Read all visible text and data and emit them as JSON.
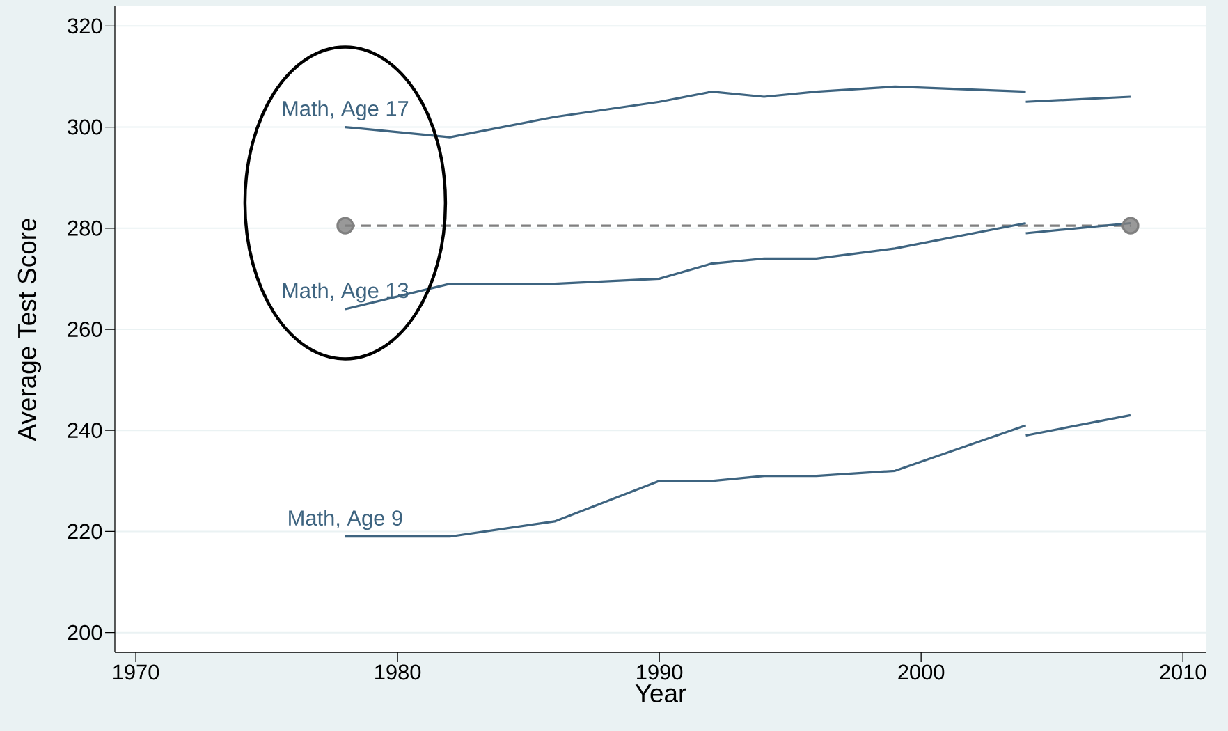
{
  "chart_data": {
    "type": "line",
    "xlabel": "Year",
    "ylabel": "Average Test Score",
    "xlim": [
      1969.2,
      2010.9
    ],
    "ylim": [
      196.1,
      323.9
    ],
    "xticks": [
      1970,
      1980,
      1990,
      2000,
      2010
    ],
    "yticks": [
      200,
      220,
      240,
      260,
      280,
      300,
      320
    ],
    "grid": "y",
    "series": [
      {
        "color": "#808080",
        "x": [
          1978,
          2008
        ],
        "values": [
          280.5,
          280.5
        ],
        "marker": "circle",
        "line_style": "dashed"
      },
      {
        "name": "Math, Age 17",
        "color": "#3e6480",
        "x": [
          1978,
          1982,
          1986,
          1990,
          1992,
          1994,
          1996,
          1999,
          2004
        ],
        "values": [
          300,
          298,
          302,
          305,
          307,
          306,
          307,
          308,
          307
        ]
      },
      {
        "color": "#3e6480",
        "x": [
          2004,
          2008
        ],
        "values": [
          305,
          306
        ]
      },
      {
        "name": "Math, Age 13",
        "color": "#3e6480",
        "x": [
          1978,
          1982,
          1986,
          1990,
          1992,
          1994,
          1996,
          1999,
          2004
        ],
        "values": [
          264,
          269,
          269,
          270,
          273,
          274,
          274,
          276,
          281
        ]
      },
      {
        "color": "#3e6480",
        "x": [
          2004,
          2008
        ],
        "values": [
          279,
          281
        ]
      },
      {
        "name": "Math, Age 9",
        "color": "#3e6480",
        "x": [
          1978,
          1982,
          1986,
          1990,
          1992,
          1994,
          1996,
          1999,
          2004
        ],
        "values": [
          219,
          219,
          222,
          230,
          230,
          231,
          231,
          232,
          241
        ]
      },
      {
        "color": "#3e6480",
        "x": [
          2004,
          2008
        ],
        "values": [
          239,
          243
        ]
      }
    ]
  }
}
